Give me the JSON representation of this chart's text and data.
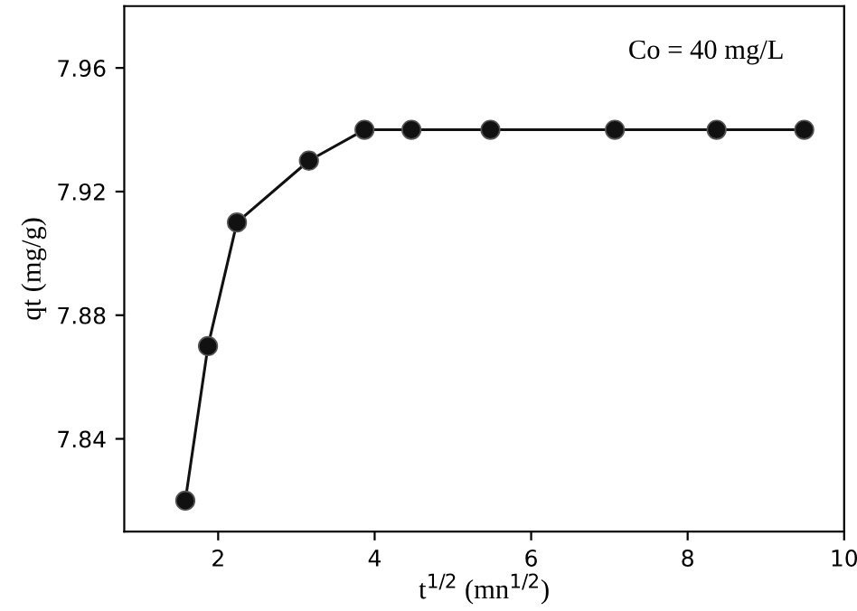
{
  "chart_data": {
    "type": "line",
    "xlabel": "t$^{1/2}$ (mn$^{1/2}$)",
    "ylabel": "qt (mg/g)",
    "annotations": [
      "Co = 40 mg/L"
    ],
    "x": [
      1.58,
      1.87,
      2.24,
      3.16,
      3.87,
      4.47,
      5.48,
      7.07,
      8.37,
      9.49
    ],
    "series": [
      {
        "color": "#111111",
        "values": [
          7.82,
          7.87,
          7.91,
          7.93,
          7.94,
          7.94,
          7.94,
          7.94,
          7.94,
          7.94
        ]
      }
    ],
    "marker": "circle",
    "line_style": "solid",
    "grid": false,
    "xlim": [
      0.8,
      10
    ],
    "ylim": [
      7.81,
      7.98
    ],
    "xticks": [
      2,
      4,
      6,
      8,
      10
    ],
    "yticks": [
      7.84,
      7.88,
      7.92,
      7.96
    ]
  }
}
